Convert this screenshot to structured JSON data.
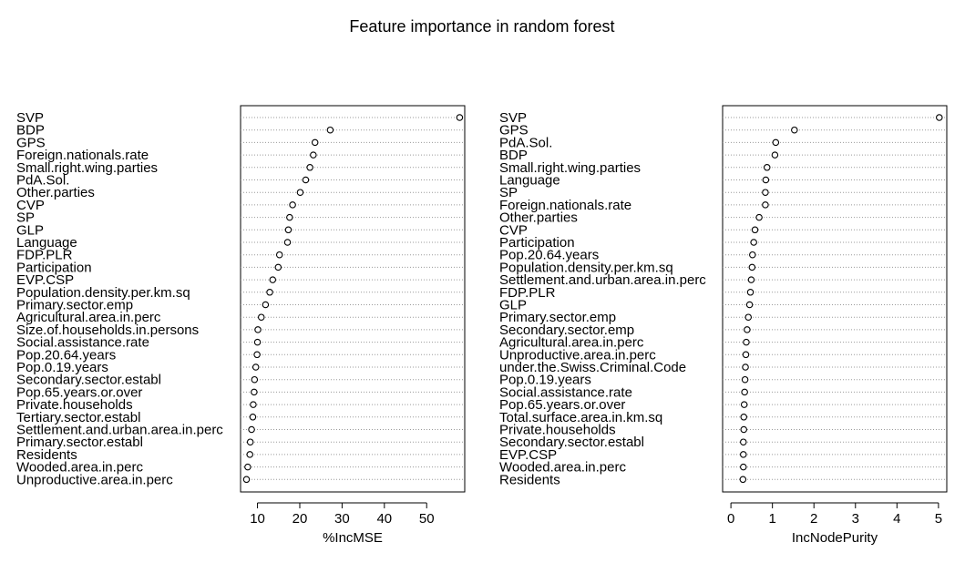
{
  "title": "Feature importance in random forest",
  "chart_data": [
    {
      "type": "scatter",
      "xlabel": "%IncMSE",
      "xlim": [
        6,
        59
      ],
      "xticks": [
        10,
        20,
        30,
        40,
        50
      ],
      "grid": "dotted horizontal guide per feature",
      "categories": [
        "SVP",
        "BDP",
        "GPS",
        "Foreign.nationals.rate",
        "Small.right.wing.parties",
        "PdA.Sol.",
        "Other.parties",
        "CVP",
        "SP",
        "GLP",
        "Language",
        "FDP.PLR",
        "Participation",
        "EVP.CSP",
        "Population.density.per.km.sq",
        "Primary.sector.emp",
        "Agricultural.area.in.perc",
        "Size.of.households.in.persons",
        "Social.assistance.rate",
        "Pop.20.64.years",
        "Pop.0.19.years",
        "Secondary.sector.establ",
        "Pop.65.years.or.over",
        "Private.households",
        "Tertiary.sector.establ",
        "Settlement.and.urban.area.in.perc",
        "Primary.sector.establ",
        "Residents",
        "Wooded.area.in.perc",
        "Unproductive.area.in.perc"
      ],
      "values": [
        57.8,
        27.2,
        23.6,
        23.2,
        22.4,
        21.4,
        20.1,
        18.3,
        17.6,
        17.3,
        17.1,
        15.2,
        14.9,
        13.6,
        12.9,
        11.9,
        10.9,
        10.1,
        10.0,
        9.9,
        9.6,
        9.3,
        9.2,
        9.0,
        8.9,
        8.6,
        8.3,
        8.2,
        7.7,
        7.4
      ]
    },
    {
      "type": "scatter",
      "xlabel": "IncNodePurity",
      "xlim": [
        -0.2,
        5.2
      ],
      "xticks": [
        0,
        1,
        2,
        3,
        4,
        5
      ],
      "grid": "dotted horizontal guide per feature",
      "categories": [
        "SVP",
        "GPS",
        "PdA.Sol.",
        "BDP",
        "Small.right.wing.parties",
        "Language",
        "SP",
        "Foreign.nationals.rate",
        "Other.parties",
        "CVP",
        "Participation",
        "Pop.20.64.years",
        "Population.density.per.km.sq",
        "Settlement.and.urban.area.in.perc",
        "FDP.PLR",
        "GLP",
        "Primary.sector.emp",
        "Secondary.sector.emp",
        "Agricultural.area.in.perc",
        "Unproductive.area.in.perc",
        "under.the.Swiss.Criminal.Code",
        "Pop.0.19.years",
        "Social.assistance.rate",
        "Pop.65.years.or.over",
        "Total.surface.area.in.km.sq",
        "Private.households",
        "Secondary.sector.establ",
        "EVP.CSP",
        "Wooded.area.in.perc",
        "Residents"
      ],
      "values": [
        5.02,
        1.53,
        1.08,
        1.06,
        0.87,
        0.84,
        0.83,
        0.83,
        0.68,
        0.58,
        0.55,
        0.52,
        0.51,
        0.49,
        0.47,
        0.45,
        0.42,
        0.39,
        0.37,
        0.36,
        0.35,
        0.34,
        0.33,
        0.32,
        0.31,
        0.31,
        0.3,
        0.3,
        0.3,
        0.29
      ]
    }
  ]
}
